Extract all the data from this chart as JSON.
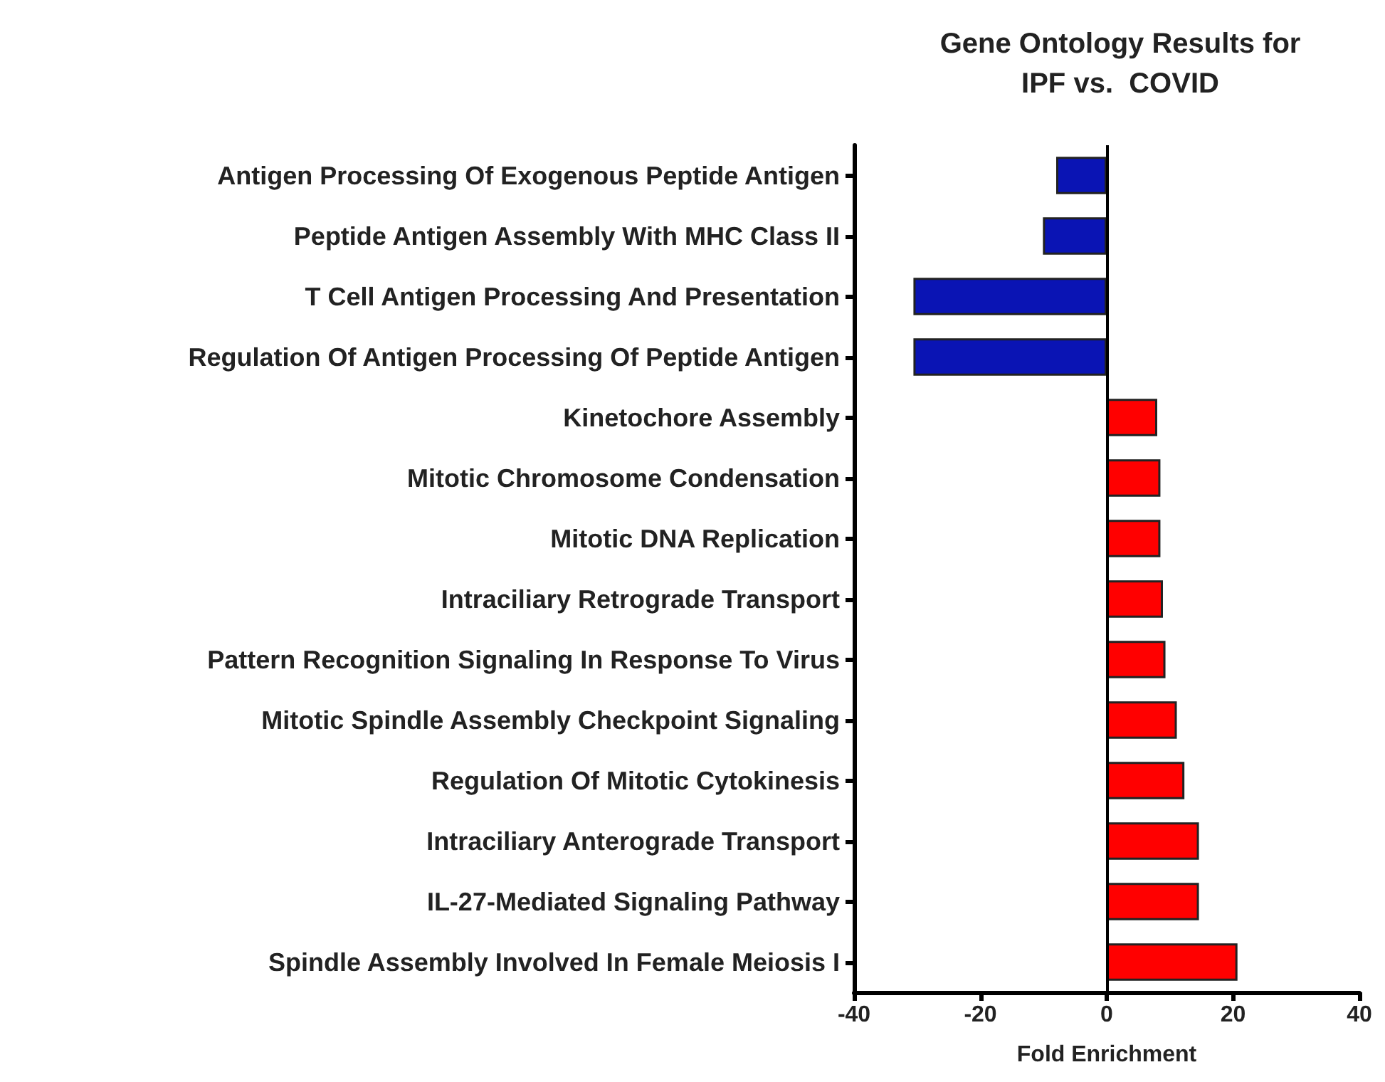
{
  "chart_data": {
    "type": "bar",
    "orientation": "horizontal",
    "title": "Gene Ontology Results for\nIPF vs.  COVID",
    "xlabel": "Fold Enrichment",
    "categories": [
      "Antigen Processing Of Exogenous Peptide Antigen",
      "Peptide Antigen Assembly With MHC Class II",
      "T Cell Antigen Processing And Presentation",
      "Regulation Of Antigen Processing Of Peptide Antigen",
      "Kinetochore Assembly",
      "Mitotic Chromosome Condensation",
      "Mitotic DNA Replication",
      "Intraciliary Retrograde Transport",
      "Pattern Recognition Signaling In Response To Virus",
      "Mitotic Spindle Assembly Checkpoint Signaling",
      "Regulation Of Mitotic Cytokinesis",
      "Intraciliary Anterograde Transport",
      "IL-27-Mediated Signaling Pathway",
      "Spindle Assembly Involved In Female Meiosis I"
    ],
    "values": [
      -8.0,
      -10.1,
      -30.6,
      -30.6,
      8.0,
      8.5,
      8.5,
      8.9,
      9.3,
      11.1,
      12.3,
      14.6,
      14.6,
      20.7
    ],
    "colors": [
      "#0a14b4",
      "#0a14b4",
      "#0a14b4",
      "#0a14b4",
      "#ff0000",
      "#ff0000",
      "#ff0000",
      "#ff0000",
      "#ff0000",
      "#ff0000",
      "#ff0000",
      "#ff0000",
      "#ff0000",
      "#ff0000"
    ],
    "xlim": [
      -40,
      40
    ],
    "xticks": [
      -40,
      -20,
      0,
      20,
      40
    ]
  }
}
